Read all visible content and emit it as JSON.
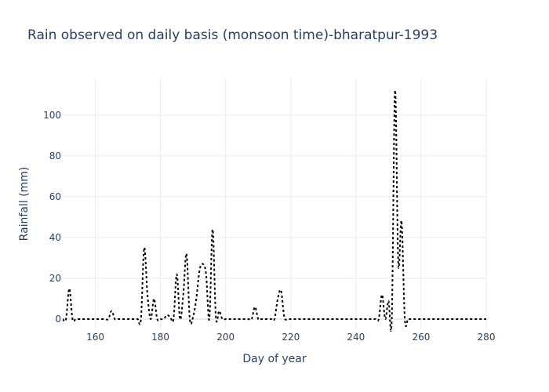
{
  "chart_data": {
    "type": "line",
    "title": "Rain observed on daily basis (monsoon time)-bharatpur-1993",
    "xlabel": "Day of year",
    "ylabel": "Rainfall (mm)",
    "xlim": [
      150,
      280
    ],
    "ylim": [
      -5,
      118
    ],
    "xticks": [
      160,
      180,
      200,
      220,
      240,
      260,
      280
    ],
    "yticks": [
      0,
      20,
      40,
      60,
      80,
      100
    ],
    "grid": true,
    "line_color": "#000000",
    "line_style": "dotted",
    "series": [
      {
        "x": [
          150,
          151,
          152,
          153,
          154,
          155,
          156,
          157,
          158,
          159,
          160,
          161,
          162,
          163,
          164,
          165,
          166,
          167,
          168,
          169,
          170,
          171,
          172,
          173,
          174,
          175,
          176,
          177,
          178,
          179,
          180,
          181,
          182,
          183,
          184,
          185,
          186,
          187,
          188,
          189,
          190,
          191,
          192,
          193,
          194,
          195,
          196,
          197,
          198,
          199,
          200,
          201,
          202,
          203,
          204,
          205,
          206,
          207,
          208,
          209,
          210,
          211,
          212,
          213,
          214,
          215,
          216,
          217,
          218,
          219,
          220,
          221,
          222,
          223,
          224,
          225,
          226,
          227,
          228,
          229,
          230,
          231,
          232,
          233,
          234,
          235,
          236,
          237,
          238,
          239,
          240,
          241,
          242,
          243,
          244,
          245,
          246,
          247,
          248,
          249,
          250,
          251,
          252,
          253,
          254,
          255,
          256,
          257,
          258,
          259,
          260,
          261,
          262,
          263,
          264,
          265,
          266,
          267,
          268,
          269,
          270,
          271,
          272,
          273,
          274,
          275,
          276,
          277,
          278,
          279,
          280
        ],
        "y": [
          0,
          0,
          15,
          0,
          0,
          0,
          0,
          0,
          0,
          0,
          0,
          0,
          0,
          0,
          0,
          4,
          0,
          0,
          0,
          0,
          0,
          0,
          0,
          0,
          0,
          35,
          12,
          0,
          10,
          0,
          0,
          0,
          2,
          1,
          0,
          22,
          0,
          12,
          32,
          0,
          1,
          10,
          24,
          27,
          22,
          0,
          44,
          1,
          4,
          0,
          0,
          0,
          0,
          0,
          0,
          0,
          0,
          0,
          0,
          6,
          0,
          0,
          0,
          0,
          0,
          0,
          10,
          14,
          1,
          0,
          0,
          0,
          0,
          0,
          0,
          0,
          0,
          0,
          0,
          0,
          0,
          0,
          0,
          0,
          0,
          0,
          0,
          0,
          0,
          0,
          0,
          0,
          0,
          0,
          0,
          0,
          0,
          0,
          12,
          0,
          9,
          0,
          112,
          27,
          48,
          0,
          0,
          0,
          0,
          0,
          0,
          0,
          0,
          0,
          0,
          0,
          0,
          0,
          0,
          0,
          0,
          0,
          0,
          0,
          0,
          0,
          0,
          0,
          0,
          0,
          0
        ]
      }
    ]
  }
}
